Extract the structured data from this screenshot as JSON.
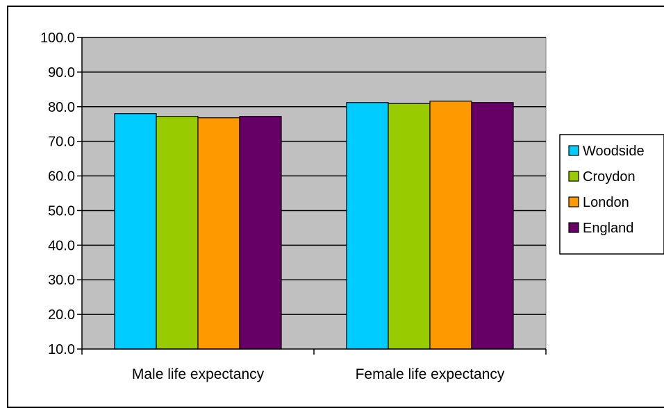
{
  "chart_data": {
    "type": "bar",
    "title": "",
    "xlabel": "",
    "ylabel": "",
    "categories": [
      "Male life expectancy",
      "Female life expectancy"
    ],
    "series": [
      {
        "name": "Woodside",
        "values": [
          78.0,
          81.2
        ],
        "color": "#00CCFF"
      },
      {
        "name": "Croydon",
        "values": [
          77.2,
          80.9
        ],
        "color": "#99CC00"
      },
      {
        "name": "London",
        "values": [
          76.8,
          81.6
        ],
        "color": "#FF9900"
      },
      {
        "name": "England",
        "values": [
          77.2,
          81.2
        ],
        "color": "#660066"
      }
    ],
    "ylim": [
      10,
      100
    ],
    "yticks": [
      "10.0",
      "20.0",
      "30.0",
      "40.0",
      "50.0",
      "60.0",
      "70.0",
      "80.0",
      "90.0",
      "100.0"
    ],
    "grid": true,
    "plot_background": "#C0C0C0",
    "legend_position": "right"
  }
}
